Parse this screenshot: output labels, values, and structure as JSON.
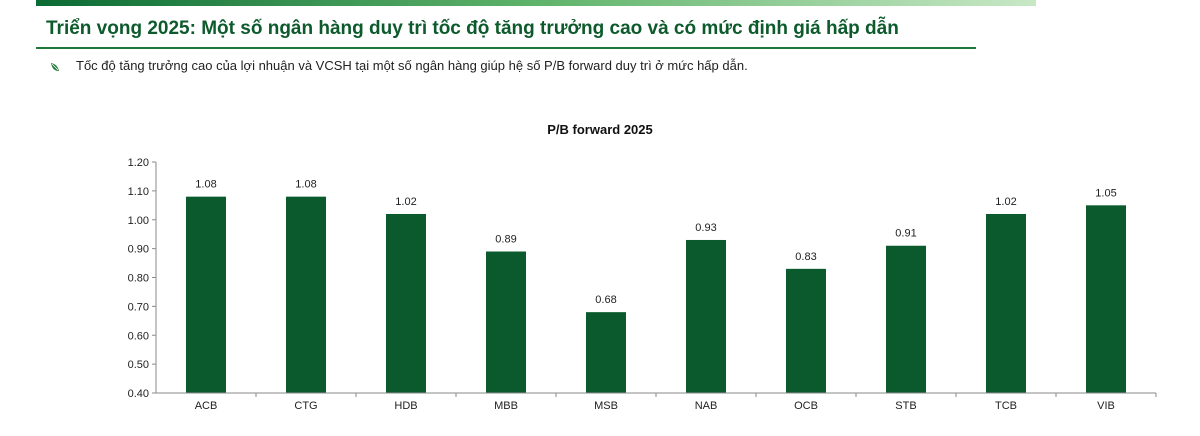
{
  "header": {
    "title": "Triển vọng 2025: Một số ngân hàng duy trì tốc độ tăng trưởng cao và có mức định giá hấp dẫn"
  },
  "bullet": {
    "text": "Tốc độ tăng trưởng cao của lợi nhuận và VCSH tại một số ngân hàng giúp hệ số P/B forward duy trì ở mức hấp dẫn."
  },
  "colors": {
    "bar": "#0b5a2e",
    "title": "#0d5a2c",
    "accent": "#1e7a3c"
  },
  "chart_data": {
    "type": "bar",
    "title": "P/B forward 2025",
    "categories": [
      "ACB",
      "CTG",
      "HDB",
      "MBB",
      "MSB",
      "NAB",
      "OCB",
      "STB",
      "TCB",
      "VIB"
    ],
    "values": [
      1.08,
      1.08,
      1.02,
      0.89,
      0.68,
      0.93,
      0.83,
      0.91,
      1.02,
      1.05
    ],
    "data_labels": [
      "1.08",
      "1.08",
      "1.02",
      "0.89",
      "0.68",
      "0.93",
      "0.83",
      "0.91",
      "1.02",
      "1.05"
    ],
    "yticks": [
      "0.40",
      "0.50",
      "0.60",
      "0.70",
      "0.80",
      "0.90",
      "1.00",
      "1.10",
      "1.20"
    ],
    "ylim": [
      0.4,
      1.2
    ],
    "xlabel": "",
    "ylabel": "",
    "grid": false,
    "legend": "none"
  }
}
